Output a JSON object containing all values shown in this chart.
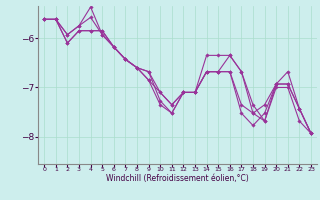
{
  "xlabel": "Windchill (Refroidissement éolien,°C)",
  "background_color": "#cdeeed",
  "line_color": "#993399",
  "grid_color": "#aaddcc",
  "xlim": [
    -0.5,
    23.5
  ],
  "ylim": [
    -8.55,
    -5.35
  ],
  "yticks": [
    -8,
    -7,
    -6
  ],
  "xticks": [
    0,
    1,
    2,
    3,
    4,
    5,
    6,
    7,
    8,
    9,
    10,
    11,
    12,
    13,
    14,
    15,
    16,
    17,
    18,
    19,
    20,
    21,
    22,
    23
  ],
  "series": [
    [
      -5.62,
      -5.62,
      -5.93,
      -5.75,
      -5.58,
      -5.93,
      -6.18,
      -6.43,
      -6.6,
      -6.68,
      -7.1,
      -7.35,
      -7.1,
      -7.1,
      -6.68,
      -6.68,
      -6.68,
      -7.35,
      -7.52,
      -7.35,
      -6.93,
      -6.93,
      -7.43,
      -7.93
    ],
    [
      -5.62,
      -5.62,
      -6.1,
      -5.85,
      -5.85,
      -5.85,
      -6.18,
      -6.43,
      -6.6,
      -6.85,
      -7.35,
      -7.52,
      -7.1,
      -7.1,
      -6.68,
      -6.68,
      -6.68,
      -7.52,
      -7.77,
      -7.52,
      -6.93,
      -6.68,
      -7.43,
      -7.93
    ],
    [
      -5.62,
      -5.62,
      -5.93,
      -5.75,
      -5.37,
      -5.93,
      -6.18,
      -6.43,
      -6.6,
      -6.68,
      -7.27,
      -7.52,
      -7.1,
      -7.1,
      -6.68,
      -6.68,
      -6.35,
      -6.68,
      -7.35,
      -7.68,
      -6.93,
      -6.93,
      -7.43,
      -7.93
    ],
    [
      -5.62,
      -5.62,
      -6.1,
      -5.85,
      -5.85,
      -5.85,
      -6.18,
      -6.43,
      -6.6,
      -6.85,
      -7.1,
      -7.35,
      -7.1,
      -7.1,
      -6.35,
      -6.35,
      -6.35,
      -6.68,
      -7.52,
      -7.68,
      -7.0,
      -7.0,
      -7.68,
      -7.93
    ]
  ],
  "figsize": [
    3.2,
    2.0
  ],
  "dpi": 100,
  "marker": "D",
  "markersize": 1.8,
  "linewidth": 0.8
}
